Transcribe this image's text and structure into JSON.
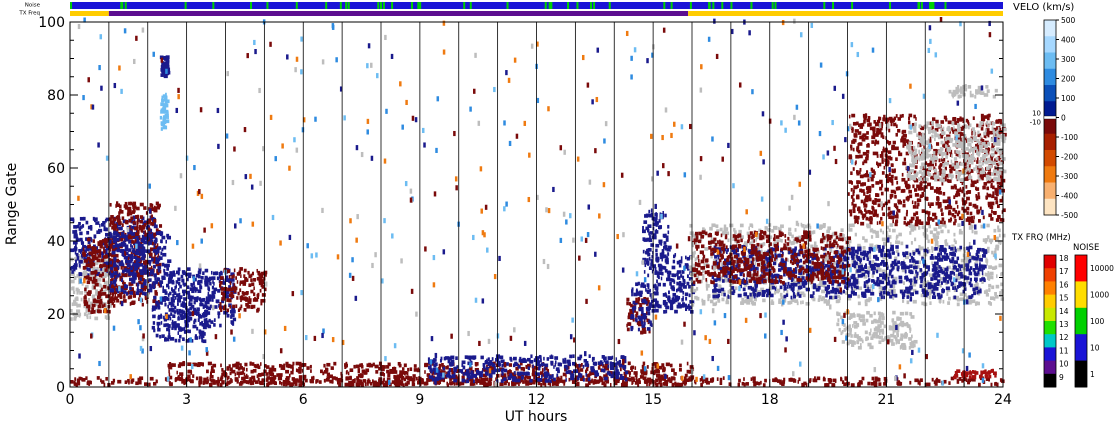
{
  "chart_data": {
    "type": "heatmap",
    "xlabel": "UT hours",
    "ylabel": "Range Gate",
    "xlim": [
      0,
      24
    ],
    "ylim": [
      0,
      100
    ],
    "x_ticks": [
      0,
      3,
      6,
      9,
      12,
      15,
      18,
      21,
      24
    ],
    "y_ticks": [
      0,
      20,
      40,
      60,
      80,
      100
    ],
    "strip_labels": {
      "noise": "Noise",
      "txfreq": "TX Freq"
    },
    "strips": {
      "noise": [
        {
          "from": 0.0,
          "to": 16.0,
          "color": "#1a14d6"
        },
        {
          "from": 16.0,
          "to": 24.0,
          "color": "#1a14d6"
        }
      ],
      "txfreq": [
        {
          "from": 0.0,
          "to": 1.0,
          "color": "#ffcc00"
        },
        {
          "from": 1.0,
          "to": 15.9,
          "color": "#5c0e90"
        },
        {
          "from": 15.9,
          "to": 24.0,
          "color": "#ffcc00"
        }
      ]
    },
    "velocity_scale": {
      "title": "VELO (km/s)",
      "ticks": [
        "500",
        "400",
        "300",
        "200",
        "100",
        "0",
        "-100",
        "-200",
        "-300",
        "-400",
        "-500"
      ],
      "ground_labels": [
        "10",
        "-10"
      ],
      "colors": [
        "#d6ecff",
        "#a6d8ff",
        "#6cbcf2",
        "#2e8be0",
        "#0b4fb8",
        "#001a90",
        "#7a0a0a",
        "#a82000",
        "#d24a00",
        "#ef7a10",
        "#f8b070",
        "#fde4c2"
      ]
    },
    "txfreq_scale": {
      "title": "TX FRQ (MHz)",
      "ticks": [
        "18",
        "17",
        "16",
        "15",
        "14",
        "13",
        "12",
        "11",
        "10",
        "9"
      ],
      "colors": [
        "#e00000",
        "#f04000",
        "#ff8000",
        "#ffcc00",
        "#c8e800",
        "#20e000",
        "#00c8c8",
        "#1a14d6",
        "#5c0e90",
        "#000000"
      ]
    },
    "noise_scale": {
      "title": "NOISE",
      "ticks": [
        "10000",
        "1000",
        "100",
        "10",
        "1"
      ],
      "colors": [
        "#ff0000",
        "#ffdd00",
        "#00d000",
        "#1a14d6",
        "#000000"
      ]
    },
    "series": [
      {
        "x_range": [
          0.0,
          1.0
        ],
        "y_range": [
          18,
          36
        ],
        "color": "#bdbdbd"
      },
      {
        "x_range": [
          0.0,
          2.2
        ],
        "y_range": [
          30,
          46
        ],
        "color": "#1a1a8c"
      },
      {
        "x_range": [
          0.3,
          1.2
        ],
        "y_range": [
          20,
          40
        ],
        "color": "#7a0a0a"
      },
      {
        "x_range": [
          1.0,
          2.3
        ],
        "y_range": [
          22,
          50
        ],
        "color": "#7a0a0a"
      },
      {
        "x_range": [
          1.0,
          2.5
        ],
        "y_range": [
          25,
          42
        ],
        "color": "#1a1a8c"
      },
      {
        "x_range": [
          2.1,
          3.5
        ],
        "y_range": [
          12,
          24
        ],
        "color": "#1a1a8c"
      },
      {
        "x_range": [
          2.5,
          4.2
        ],
        "y_range": [
          16,
          32
        ],
        "color": "#1a1a8c"
      },
      {
        "x_range": [
          3.8,
          5.0
        ],
        "y_range": [
          20,
          32
        ],
        "color": "#7a0a0a"
      },
      {
        "x_range": [
          2.3,
          2.5
        ],
        "y_range": [
          84,
          90
        ],
        "color": "#1a1a8c"
      },
      {
        "x_range": [
          2.3,
          2.5
        ],
        "y_range": [
          70,
          80
        ],
        "color": "#6cbcf2"
      },
      {
        "x_range": [
          0.0,
          24.0
        ],
        "y_range": [
          0,
          2
        ],
        "color": "#7a0a0a"
      },
      {
        "x_range": [
          2.5,
          16.0
        ],
        "y_range": [
          0,
          6
        ],
        "color": "#7a0a0a"
      },
      {
        "x_range": [
          9.2,
          14.3
        ],
        "y_range": [
          1,
          8
        ],
        "color": "#1a1a8c"
      },
      {
        "x_range": [
          14.3,
          14.9
        ],
        "y_range": [
          14,
          24
        ],
        "color": "#7a0a0a"
      },
      {
        "x_range": [
          14.4,
          15.1
        ],
        "y_range": [
          15,
          28
        ],
        "color": "#1a1a8c"
      },
      {
        "x_range": [
          14.7,
          15.4
        ],
        "y_range": [
          30,
          48
        ],
        "color": "#1a1a8c"
      },
      {
        "x_range": [
          15.0,
          16.0
        ],
        "y_range": [
          20,
          36
        ],
        "color": "#1a1a8c"
      },
      {
        "x_range": [
          15.9,
          24.0
        ],
        "y_range": [
          22,
          44
        ],
        "color": "#bdbdbd"
      },
      {
        "x_range": [
          16.5,
          23.5
        ],
        "y_range": [
          24,
          38
        ],
        "color": "#1a1a8c"
      },
      {
        "x_range": [
          16.0,
          20.0
        ],
        "y_range": [
          28,
          42
        ],
        "color": "#7a0a0a"
      },
      {
        "x_range": [
          19.7,
          21.7
        ],
        "y_range": [
          10,
          20
        ],
        "color": "#bdbdbd"
      },
      {
        "x_range": [
          20.0,
          24.0
        ],
        "y_range": [
          44,
          74
        ],
        "color": "#7a0a0a"
      },
      {
        "x_range": [
          21.5,
          24.0
        ],
        "y_range": [
          56,
          72
        ],
        "color": "#bdbdbd"
      },
      {
        "x_range": [
          22.6,
          23.8
        ],
        "y_range": [
          79,
          82
        ],
        "color": "#bdbdbd"
      },
      {
        "x_range": [
          22.7,
          23.8
        ],
        "y_range": [
          2,
          4
        ],
        "color": "#a81010"
      }
    ]
  }
}
